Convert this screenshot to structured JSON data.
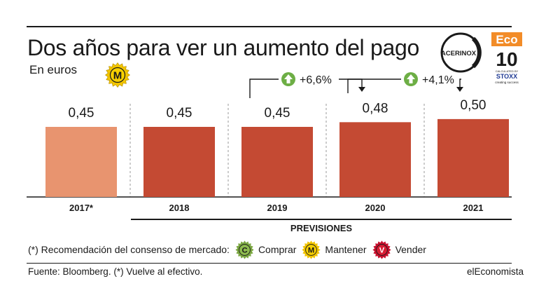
{
  "header": {
    "title": "Dos años para ver un aumento del pago",
    "subtitle": "En euros",
    "recommendation_letter": "M"
  },
  "logos": {
    "company": "ACERINOX",
    "eco": "Eco",
    "eco_number": "10",
    "stoxx_small": "CALCULATED BY",
    "stoxx": "STOXX",
    "stoxx_tag": "creating success"
  },
  "chart_data": {
    "type": "bar",
    "title": "Dos años para ver un aumento del pago",
    "subtitle": "En euros",
    "categories": [
      "2017*",
      "2018",
      "2019",
      "2020",
      "2021"
    ],
    "values": [
      0.45,
      0.45,
      0.45,
      0.48,
      0.5
    ],
    "value_labels": [
      "0,45",
      "0,45",
      "0,45",
      "0,48",
      "0,50"
    ],
    "colors": [
      "#E8946F",
      "#C44A33",
      "#C44A33",
      "#C44A33",
      "#C44A33"
    ],
    "ylim": [
      0,
      0.5
    ],
    "grid": false,
    "annotations": [
      {
        "from": "2019",
        "to": "2020",
        "text": "+6,6%"
      },
      {
        "from": "2020",
        "to": "2021",
        "text": "+4,1%"
      }
    ],
    "bracket_label": "PREVISIONES"
  },
  "legend": {
    "intro": "(*) Recomendación del consenso de mercado:",
    "items": [
      {
        "letter": "C",
        "label": "Comprar",
        "color": "#7BA742"
      },
      {
        "letter": "M",
        "label": "Mantener",
        "color": "#F2C500"
      },
      {
        "letter": "V",
        "label": "Vender",
        "color": "#C8102E"
      }
    ]
  },
  "footer": {
    "source": "Fuente: Bloomberg. (*) Vuelve al efectivo.",
    "brand": "elEconomista"
  },
  "colors": {
    "bar_current": "#E8946F",
    "bar_forecast": "#C44A33",
    "arrow_up": "#6DAE45",
    "mantener": "#F2C500"
  }
}
